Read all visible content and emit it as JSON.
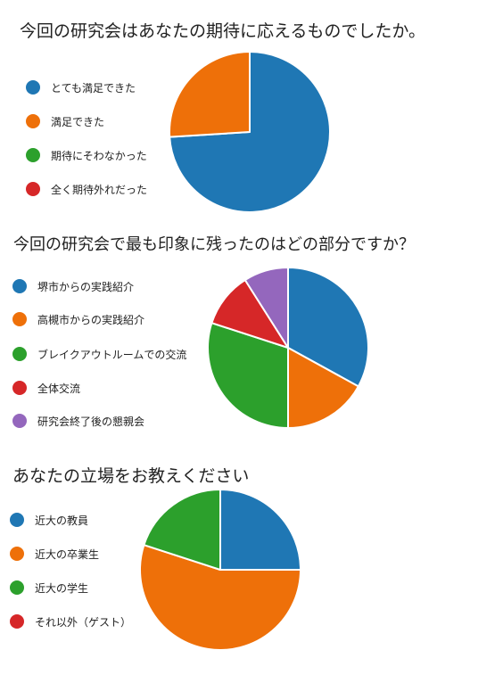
{
  "colors": {
    "blue": "#1f77b4",
    "orange": "#ee7009",
    "green": "#2ca02c",
    "red": "#d62728",
    "purple": "#9467bd"
  },
  "chart_data": [
    {
      "type": "pie",
      "title": "今回の研究会はあなたの期待に応えるものでしたか。",
      "categories": [
        "とても満足できた",
        "満足できた",
        "期待にそわなかった",
        "全く期待外れだった"
      ],
      "values": [
        74,
        26,
        0,
        0
      ],
      "colors": [
        "#1f77b4",
        "#ee7009",
        "#2ca02c",
        "#d62728"
      ],
      "legend_position": "left"
    },
    {
      "type": "pie",
      "title": "今回の研究会で最も印象に残ったのはどの部分ですか？",
      "categories": [
        "堺市からの実践紹介",
        "高槻市からの実践紹介",
        "ブレイクアウトルームでの交流",
        "全体交流",
        "研究会終了後の懇親会"
      ],
      "values": [
        33,
        17,
        30,
        11,
        9
      ],
      "colors": [
        "#1f77b4",
        "#ee7009",
        "#2ca02c",
        "#d62728",
        "#9467bd"
      ],
      "legend_position": "left"
    },
    {
      "type": "pie",
      "title": "あなたの立場をお教えください",
      "categories": [
        "近大の教員",
        "近大の卒業生",
        "近大の学生",
        "それ以外（ゲスト）"
      ],
      "values": [
        25,
        55,
        20,
        0
      ],
      "colors": [
        "#1f77b4",
        "#ee7009",
        "#2ca02c",
        "#d62728"
      ],
      "legend_position": "left"
    }
  ]
}
